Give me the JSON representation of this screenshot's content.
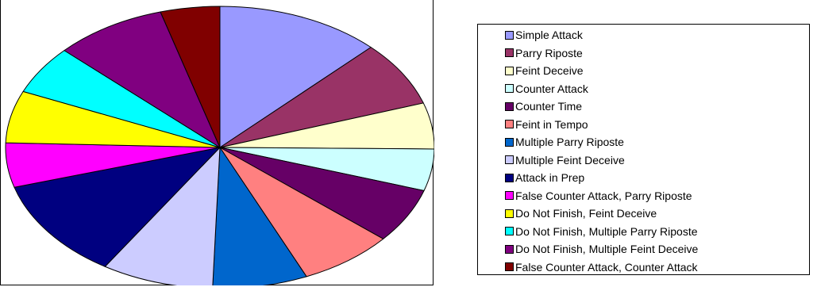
{
  "chart_data": {
    "type": "pie",
    "title": "",
    "legend_position": "right",
    "series": [
      {
        "values": [
          12.5,
          7.5,
          5.3,
          4.8,
          6.3,
          7.2,
          7.2,
          8.5,
          11.5,
          5.1,
          6.0,
          5.6,
          8.5,
          4.5
        ]
      }
    ],
    "slices": [
      {
        "label": "Simple Attack",
        "value": 12.5,
        "color": "#9999ff"
      },
      {
        "label": "Parry Riposte",
        "value": 7.5,
        "color": "#993366"
      },
      {
        "label": "Feint Deceive",
        "value": 5.3,
        "color": "#ffffcc"
      },
      {
        "label": "Counter Attack",
        "value": 4.8,
        "color": "#ccffff"
      },
      {
        "label": "Counter Time",
        "value": 6.3,
        "color": "#660066"
      },
      {
        "label": "Feint in Tempo",
        "value": 7.2,
        "color": "#ff8080"
      },
      {
        "label": "Multiple Parry Riposte",
        "value": 7.2,
        "color": "#0066cc"
      },
      {
        "label": "Multiple Feint Deceive",
        "value": 8.5,
        "color": "#ccccff"
      },
      {
        "label": "Attack in Prep",
        "value": 11.5,
        "color": "#000080"
      },
      {
        "label": "False Counter Attack, Parry Riposte",
        "value": 5.1,
        "color": "#ff00ff"
      },
      {
        "label": "Do Not Finish, Feint Deceive",
        "value": 6.0,
        "color": "#ffff00"
      },
      {
        "label": "Do Not Finish, Multiple Parry Riposte",
        "value": 5.6,
        "color": "#00ffff"
      },
      {
        "label": "Do Not Finish, Multiple Feint Deceive",
        "value": 8.5,
        "color": "#800080"
      },
      {
        "label": "False Counter Attack, Counter Attack",
        "value": 4.5,
        "color": "#800000"
      }
    ]
  }
}
